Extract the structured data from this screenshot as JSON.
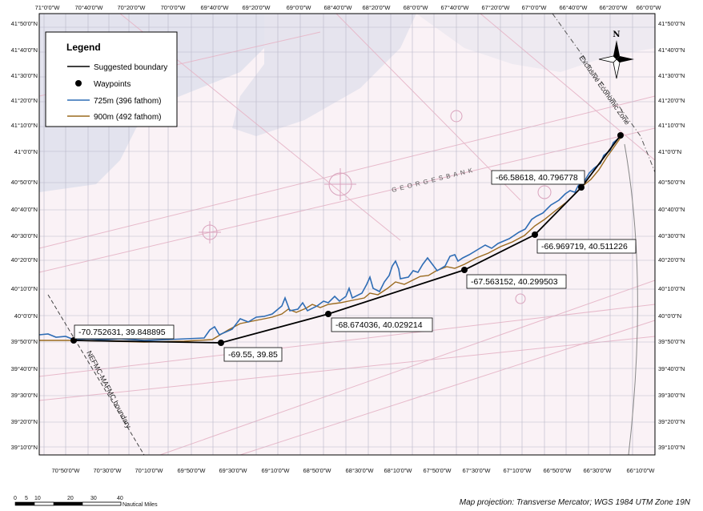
{
  "map": {
    "top_labels": [
      "71°0'0\"W",
      "70°40'0\"W",
      "70°20'0\"W",
      "70°0'0\"W",
      "69°40'0\"W",
      "69°20'0\"W",
      "69°0'0\"W",
      "68°40'0\"W",
      "68°20'0\"W",
      "68°0'0\"W",
      "67°40'0\"W",
      "67°20'0\"W",
      "67°0'0\"W",
      "66°40'0\"W",
      "66°20'0\"W",
      "66°0'0\"W"
    ],
    "bottom_labels": [
      "70°50'0\"W",
      "70°30'0\"W",
      "70°10'0\"W",
      "69°50'0\"W",
      "69°30'0\"W",
      "69°10'0\"W",
      "68°50'0\"W",
      "68°30'0\"W",
      "68°10'0\"W",
      "67°50'0\"W",
      "67°30'0\"W",
      "67°10'0\"W",
      "66°50'0\"W",
      "66°30'0\"W",
      "66°10'0\"W"
    ],
    "left_labels": [
      "41°50'0\"N",
      "41°40'0\"N",
      "41°30'0\"N",
      "41°20'0\"N",
      "41°10'0\"N",
      "41°0'0\"N",
      "40°50'0\"N",
      "40°40'0\"N",
      "40°30'0\"N",
      "40°20'0\"N",
      "40°10'0\"N",
      "40°0'0\"N",
      "39°50'0\"N",
      "39°40'0\"N",
      "39°30'0\"N",
      "39°20'0\"N",
      "39°10'0\"N"
    ],
    "right_labels": [
      "41°50'0\"N",
      "41°40'0\"N",
      "41°30'0\"N",
      "41°20'0\"N",
      "41°10'0\"N",
      "41°0'0\"N",
      "40°50'0\"N",
      "40°40'0\"N",
      "40°30'0\"N",
      "40°20'0\"N",
      "40°10'0\"N",
      "40°0'0\"N",
      "39°50'0\"N",
      "39°40'0\"N",
      "39°30'0\"N",
      "39°20'0\"N",
      "39°10'0\"N"
    ],
    "waypoints": [
      {
        "label": "-70.752631, 39.848895"
      },
      {
        "label": "-69.55, 39.85"
      },
      {
        "label": "-68.674036, 40.029214"
      },
      {
        "label": "-67.563152, 40.299503"
      },
      {
        "label": "-66.969719, 40.511226"
      },
      {
        "label": "-66.58618, 40.796778"
      },
      {
        "label": ""
      }
    ],
    "eez_label": "Exclusive Economic Zone",
    "nefmc_label": "NEFMC-MAFMC boundary",
    "bank_label": "G E O R G E S   B A N K",
    "north_label": "N"
  },
  "legend": {
    "title": "Legend",
    "items": [
      {
        "label": "Suggested boundary",
        "color": "#000000"
      },
      {
        "label": "Waypoints",
        "color": "#000000"
      },
      {
        "label": "725m (396 fathom)",
        "color": "#2f6db5"
      },
      {
        "label": "900m (492 fathom)",
        "color": "#9a6a1e"
      }
    ]
  },
  "scale_bar": {
    "ticks": [
      "0",
      "5",
      "10",
      "20",
      "30",
      "40"
    ],
    "units": "Nautical Miles"
  },
  "projection_note": "Map projection: Transverse Mercator; WGS 1984 UTM Zone 19N"
}
